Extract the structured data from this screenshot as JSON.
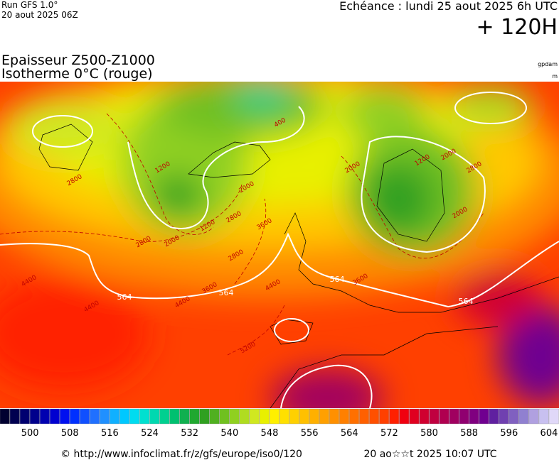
{
  "header": {
    "run": "Run GFS 1.0°",
    "run_date": "20 aout 2025 06Z",
    "valid": "Echéance : lundi 25 aout 2025 6h UTC",
    "lead": "+ 120H",
    "title_1": "Epaisseur Z500-Z1000",
    "title_2": "Isotherme 0°C (rouge)",
    "unit_1": "gpdam",
    "unit_2": "m"
  },
  "map": {
    "thickness_labels": [
      "564",
      "564",
      "564",
      "564"
    ],
    "isotherm_labels": [
      "4400",
      "4400",
      "4400",
      "4400",
      "3600",
      "3600",
      "3600",
      "2800",
      "2800",
      "2800",
      "2800",
      "2800",
      "2000",
      "2000",
      "2000",
      "2000",
      "2000",
      "1200",
      "1200",
      "400",
      "5200",
      "1200"
    ]
  },
  "colorbar": {
    "labels": [
      500,
      508,
      516,
      524,
      532,
      540,
      548,
      556,
      564,
      572,
      580,
      588,
      596,
      604
    ],
    "colors": [
      "#000030",
      "#000050",
      "#000070",
      "#00008c",
      "#0000b0",
      "#0000d0",
      "#0010f0",
      "#0030ff",
      "#1050ff",
      "#2070ff",
      "#2090ff",
      "#10b0ff",
      "#00c8ff",
      "#00dcf0",
      "#00e0d0",
      "#00d8b0",
      "#00d090",
      "#00c070",
      "#10b050",
      "#20a830",
      "#30a020",
      "#50b020",
      "#70c020",
      "#90d020",
      "#b0dc20",
      "#d0e820",
      "#e8f000",
      "#fff000",
      "#ffe000",
      "#ffd000",
      "#ffc000",
      "#ffb000",
      "#ffa000",
      "#ff9000",
      "#ff8000",
      "#ff7000",
      "#ff6000",
      "#ff5000",
      "#ff4000",
      "#ff2000",
      "#f00010",
      "#e00020",
      "#d00030",
      "#c00040",
      "#b00050",
      "#a00060",
      "#900070",
      "#800080",
      "#700090",
      "#6020a0",
      "#7040b0",
      "#8060c0",
      "#9080d0",
      "#b0a0e0",
      "#c8c0f0",
      "#e0d8f8"
    ]
  },
  "footer": {
    "url": "© http://www.infoclimat.fr/z/gfs/europe/iso0/120",
    "generated": "20 ao☆☆t 2025 10:07 UTC"
  }
}
